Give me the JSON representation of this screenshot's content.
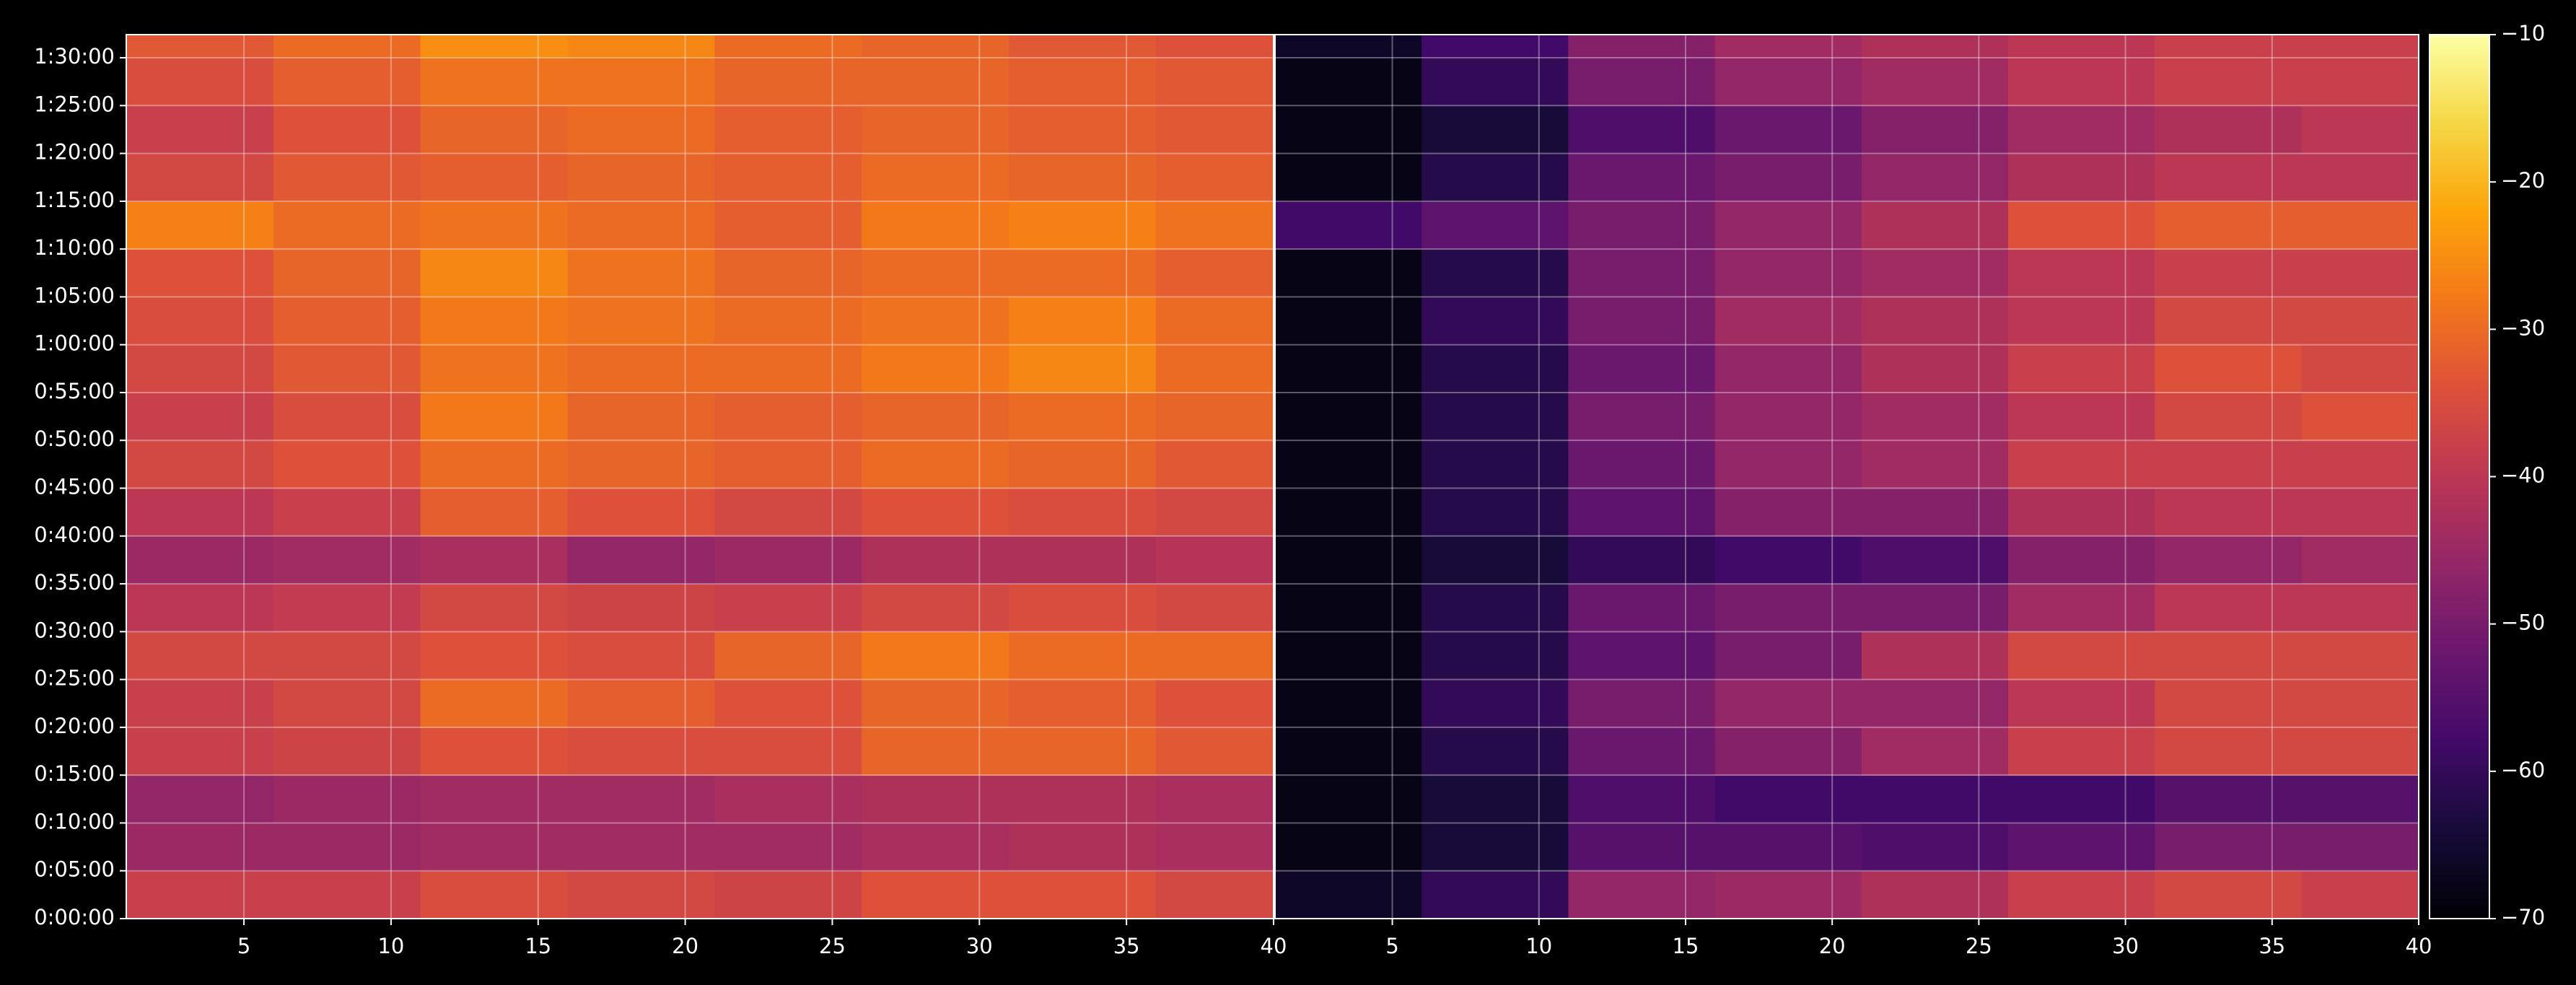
{
  "chart_data": {
    "type": "heatmap",
    "colormap": "inferno",
    "grid": true,
    "y_edges": [
      0,
      300,
      600,
      900,
      1200,
      1500,
      1800,
      2100,
      2400,
      2700,
      3000,
      3300,
      3600,
      3900,
      4200,
      4500,
      4800,
      5100,
      5400,
      5545
    ],
    "ylim": [
      0,
      5545
    ],
    "yticks": [
      {
        "value": 0,
        "label": "0:00:00"
      },
      {
        "value": 300,
        "label": "0:05:00"
      },
      {
        "value": 600,
        "label": "0:10:00"
      },
      {
        "value": 900,
        "label": "0:15:00"
      },
      {
        "value": 1200,
        "label": "0:20:00"
      },
      {
        "value": 1500,
        "label": "0:25:00"
      },
      {
        "value": 1800,
        "label": "0:30:00"
      },
      {
        "value": 2100,
        "label": "0:35:00"
      },
      {
        "value": 2400,
        "label": "0:40:00"
      },
      {
        "value": 2700,
        "label": "0:45:00"
      },
      {
        "value": 3000,
        "label": "0:50:00"
      },
      {
        "value": 3300,
        "label": "0:55:00"
      },
      {
        "value": 3600,
        "label": "1:00:00"
      },
      {
        "value": 3900,
        "label": "1:05:00"
      },
      {
        "value": 4200,
        "label": "1:10:00"
      },
      {
        "value": 4500,
        "label": "1:15:00"
      },
      {
        "value": 4800,
        "label": "1:20:00"
      },
      {
        "value": 5100,
        "label": "1:25:00"
      },
      {
        "value": 5400,
        "label": "1:30:00"
      }
    ],
    "colorbar": {
      "lim": [
        -70,
        -10
      ],
      "ticks": [
        {
          "value": -10,
          "label": "−10"
        },
        {
          "value": -20,
          "label": "−20"
        },
        {
          "value": -30,
          "label": "−30"
        },
        {
          "value": -40,
          "label": "−40"
        },
        {
          "value": -50,
          "label": "−50"
        },
        {
          "value": -60,
          "label": "−60"
        },
        {
          "value": -70,
          "label": "−70"
        }
      ]
    },
    "panels": [
      {
        "x_edges": [
          1,
          6,
          11,
          16,
          21,
          26,
          31,
          36,
          40
        ],
        "xlim": [
          1,
          40
        ],
        "xticks": [
          5,
          10,
          15,
          20,
          25,
          30,
          35,
          40
        ],
        "values": [
          [
            -38,
            -38,
            -35,
            -36,
            -37,
            -34,
            -34,
            -36
          ],
          [
            -45,
            -45,
            -44,
            -44,
            -44,
            -43,
            -42,
            -43
          ],
          [
            -46,
            -45,
            -44,
            -44,
            -43,
            -42,
            -42,
            -43
          ],
          [
            -38,
            -37,
            -34,
            -35,
            -35,
            -31,
            -31,
            -33
          ],
          [
            -38,
            -36,
            -30,
            -32,
            -34,
            -31,
            -32,
            -34
          ],
          [
            -36,
            -36,
            -34,
            -35,
            -31,
            -28,
            -30,
            -30
          ],
          [
            -40,
            -39,
            -36,
            -37,
            -38,
            -36,
            -35,
            -36
          ],
          [
            -45,
            -44,
            -43,
            -46,
            -45,
            -42,
            -42,
            -41
          ],
          [
            -40,
            -38,
            -32,
            -34,
            -36,
            -34,
            -35,
            -36
          ],
          [
            -36,
            -34,
            -30,
            -31,
            -32,
            -30,
            -31,
            -33
          ],
          [
            -38,
            -35,
            -28,
            -31,
            -32,
            -31,
            -30,
            -31
          ],
          [
            -36,
            -33,
            -29,
            -30,
            -30,
            -28,
            -26,
            -30
          ],
          [
            -35,
            -32,
            -28,
            -29,
            -30,
            -29,
            -27,
            -30
          ],
          [
            -34,
            -31,
            -26,
            -29,
            -31,
            -30,
            -30,
            -32
          ],
          [
            -27,
            -30,
            -29,
            -30,
            -32,
            -28,
            -27,
            -29
          ],
          [
            -36,
            -33,
            -32,
            -31,
            -32,
            -30,
            -31,
            -32
          ],
          [
            -38,
            -34,
            -31,
            -30,
            -32,
            -31,
            -32,
            -33
          ],
          [
            -35,
            -32,
            -29,
            -29,
            -31,
            -31,
            -32,
            -33
          ],
          [
            -33,
            -30,
            -25,
            -26,
            -30,
            -31,
            -33,
            -34
          ]
        ]
      },
      {
        "x_edges": [
          1,
          6,
          11,
          16,
          21,
          26,
          31,
          36,
          40
        ],
        "xlim": [
          1,
          40
        ],
        "xticks": [
          5,
          10,
          15,
          20,
          25,
          30,
          35,
          40
        ],
        "values": [
          [
            -66,
            -60,
            -46,
            -45,
            -42,
            -38,
            -36,
            -38
          ],
          [
            -68,
            -64,
            -55,
            -55,
            -56,
            -54,
            -50,
            -50
          ],
          [
            -68,
            -64,
            -56,
            -58,
            -58,
            -58,
            -55,
            -55
          ],
          [
            -68,
            -62,
            -52,
            -48,
            -44,
            -38,
            -36,
            -36
          ],
          [
            -68,
            -60,
            -50,
            -46,
            -46,
            -40,
            -36,
            -36
          ],
          [
            -68,
            -62,
            -54,
            -50,
            -42,
            -36,
            -36,
            -36
          ],
          [
            -68,
            -62,
            -52,
            -50,
            -50,
            -44,
            -40,
            -40
          ],
          [
            -68,
            -64,
            -60,
            -58,
            -56,
            -48,
            -46,
            -44
          ],
          [
            -68,
            -62,
            -54,
            -48,
            -48,
            -42,
            -40,
            -40
          ],
          [
            -68,
            -62,
            -52,
            -46,
            -44,
            -38,
            -38,
            -38
          ],
          [
            -68,
            -62,
            -50,
            -46,
            -44,
            -40,
            -36,
            -34
          ],
          [
            -68,
            -62,
            -52,
            -46,
            -42,
            -38,
            -34,
            -36
          ],
          [
            -68,
            -60,
            -50,
            -44,
            -42,
            -40,
            -36,
            -36
          ],
          [
            -68,
            -62,
            -50,
            -46,
            -44,
            -40,
            -38,
            -38
          ],
          [
            -58,
            -54,
            -50,
            -46,
            -42,
            -34,
            -32,
            -32
          ],
          [
            -68,
            -62,
            -52,
            -50,
            -46,
            -42,
            -40,
            -40
          ],
          [
            -68,
            -64,
            -56,
            -52,
            -48,
            -44,
            -42,
            -40
          ],
          [
            -68,
            -60,
            -50,
            -46,
            -44,
            -40,
            -38,
            -38
          ],
          [
            -66,
            -58,
            -48,
            -44,
            -42,
            -40,
            -38,
            -38
          ]
        ]
      }
    ]
  }
}
